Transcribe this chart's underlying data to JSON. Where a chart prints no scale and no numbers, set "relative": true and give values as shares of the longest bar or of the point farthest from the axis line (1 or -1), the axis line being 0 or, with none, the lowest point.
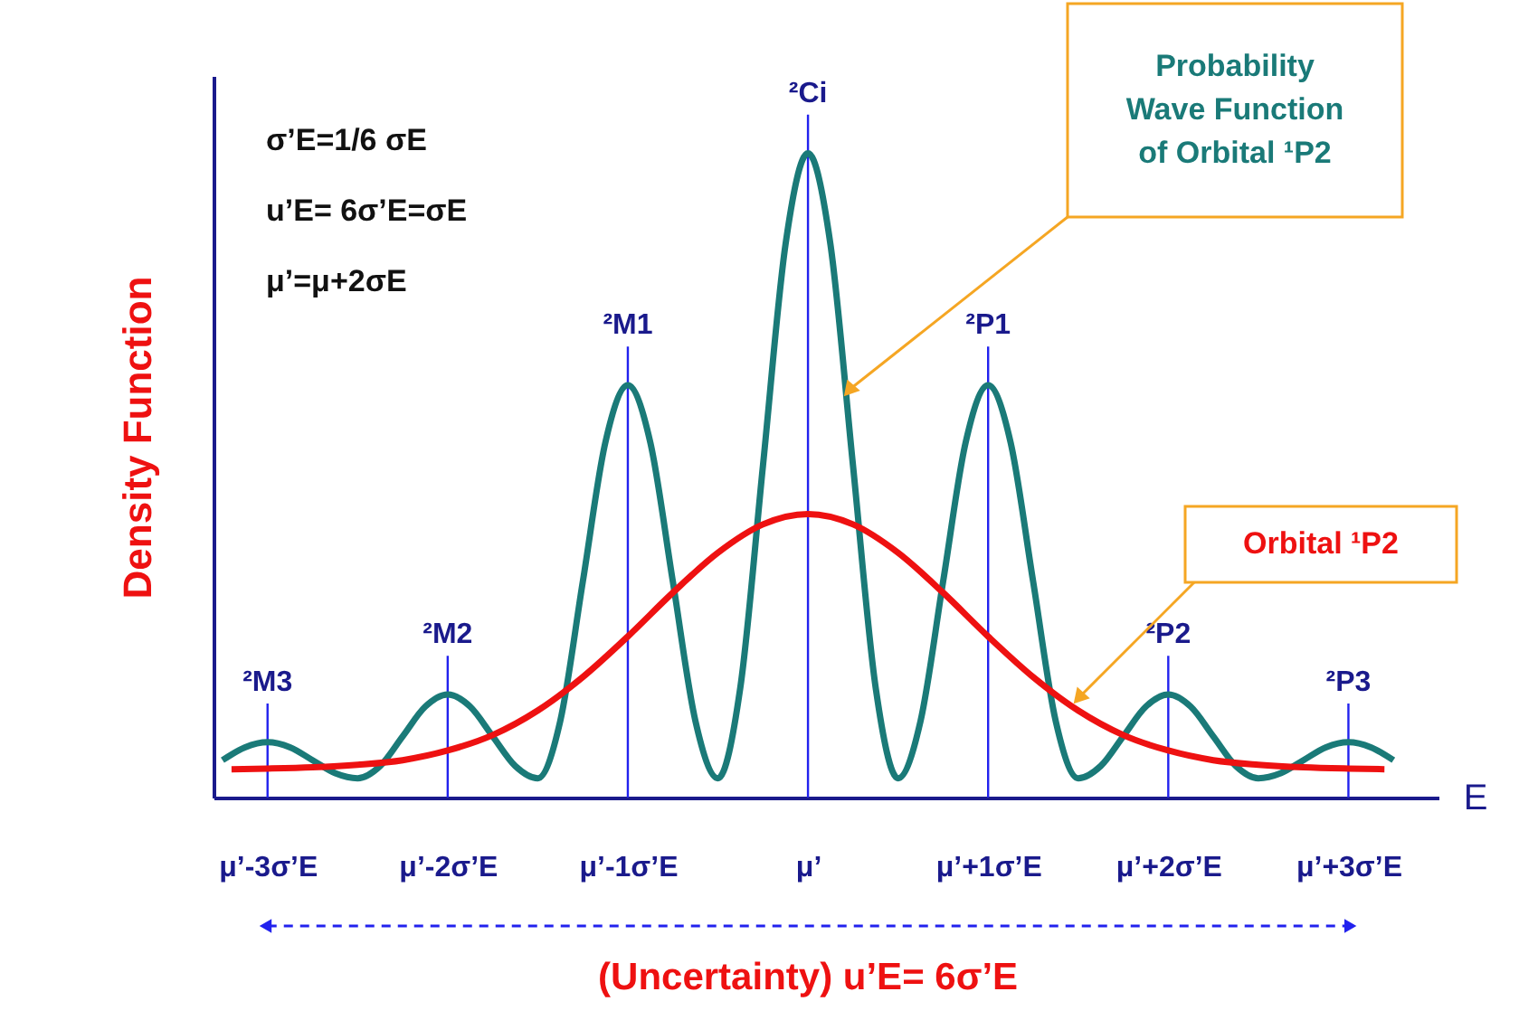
{
  "chart_data": {
    "type": "line",
    "relative": true,
    "xlabel": "E",
    "ylabel": "Density Function",
    "xlim": [
      -3.3,
      3.5
    ],
    "xticks": [
      {
        "value": -3,
        "label": "μ’-3σ’E"
      },
      {
        "value": -2,
        "label": "μ’-2σ’E"
      },
      {
        "value": -1,
        "label": "μ’-1σ’E"
      },
      {
        "value": 0,
        "label": "μ’"
      },
      {
        "value": 1,
        "label": "μ’+1σ’E"
      },
      {
        "value": 2,
        "label": "μ’+2σ’E"
      },
      {
        "value": 3,
        "label": "μ’+3σ’E"
      }
    ],
    "series": [
      {
        "name": "Probability Wave Function of Orbital ¹P2",
        "color": "#1a7a78",
        "x": [
          -3.25,
          -3.125,
          -3,
          -2.875,
          -2.75,
          -2.625,
          -2.5,
          -2.375,
          -2.25,
          -2.125,
          -2,
          -1.875,
          -1.75,
          -1.625,
          -1.5,
          -1.375,
          -1.25,
          -1.125,
          -1,
          -0.875,
          -0.75,
          -0.625,
          -0.5,
          -0.375,
          -0.25,
          -0.125,
          0,
          0.125,
          0.25,
          0.375,
          0.5,
          0.625,
          0.75,
          0.875,
          1,
          1.125,
          1.25,
          1.375,
          1.5,
          1.625,
          1.75,
          1.875,
          2,
          2.125,
          2.25,
          2.375,
          2.5,
          2.625,
          2.75,
          2.875,
          3,
          3.125,
          3.25
        ],
        "values": [
          0.058,
          0.078,
          0.086,
          0.078,
          0.058,
          0.038,
          0.03,
          0.049,
          0.095,
          0.141,
          0.16,
          0.141,
          0.095,
          0.049,
          0.03,
          0.119,
          0.335,
          0.551,
          0.64,
          0.551,
          0.335,
          0.119,
          0.03,
          0.172,
          0.515,
          0.858,
          1,
          0.858,
          0.515,
          0.172,
          0.03,
          0.119,
          0.335,
          0.551,
          0.64,
          0.551,
          0.335,
          0.119,
          0.03,
          0.049,
          0.095,
          0.141,
          0.16,
          0.141,
          0.095,
          0.049,
          0.03,
          0.038,
          0.058,
          0.078,
          0.086,
          0.078,
          0.058
        ]
      },
      {
        "name": "Orbital ¹P2",
        "color": "#ee1111",
        "x": [
          -3.2,
          -3,
          -2.75,
          -2.5,
          -2.25,
          -2,
          -1.75,
          -1.5,
          -1.25,
          -1,
          -0.75,
          -0.5,
          -0.25,
          0,
          0.25,
          0.5,
          0.75,
          1,
          1.25,
          1.5,
          1.75,
          2,
          2.25,
          2.5,
          2.75,
          3,
          3.2
        ],
        "values": [
          0.044,
          0.045,
          0.047,
          0.051,
          0.058,
          0.073,
          0.097,
          0.135,
          0.187,
          0.25,
          0.318,
          0.38,
          0.424,
          0.44,
          0.424,
          0.38,
          0.318,
          0.25,
          0.187,
          0.135,
          0.097,
          0.073,
          0.058,
          0.051,
          0.047,
          0.045,
          0.044
        ]
      }
    ],
    "ref_lines": [
      {
        "axis": "x",
        "value": -3,
        "label": "²M3",
        "color": "#2222ee"
      },
      {
        "axis": "x",
        "value": -2,
        "label": "²M2",
        "color": "#2222ee"
      },
      {
        "axis": "x",
        "value": -1,
        "label": "²M1",
        "color": "#2222ee"
      },
      {
        "axis": "x",
        "value": 0,
        "label": "²Ci",
        "color": "#2222ee"
      },
      {
        "axis": "x",
        "value": 1,
        "label": "²P1",
        "color": "#2222ee"
      },
      {
        "axis": "x",
        "value": 2,
        "label": "²P2",
        "color": "#2222ee"
      },
      {
        "axis": "x",
        "value": 3,
        "label": "²P3",
        "color": "#2222ee"
      }
    ],
    "annotations": [
      "σ’E=1/6 σE",
      "u’E= 6σ’E=σE",
      "μ’=μ+2σE",
      "(Uncertainty) u’E= 6σ’E"
    ]
  }
}
